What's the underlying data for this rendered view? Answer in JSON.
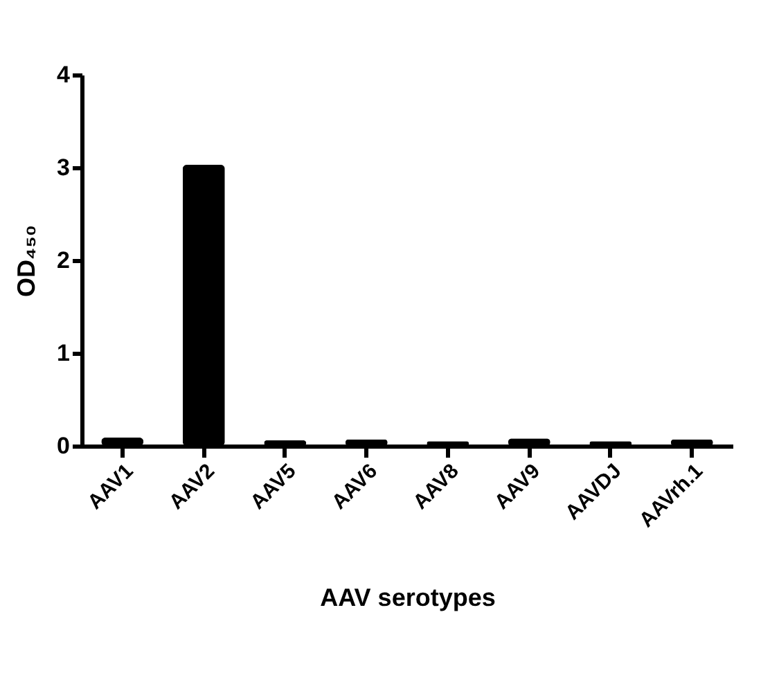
{
  "chart_data": {
    "type": "bar",
    "xlabel": "AAV serotypes",
    "ylabel": "OD₄₅₀",
    "categories": [
      "AAV1",
      "AAV2",
      "AAV5",
      "AAV6",
      "AAV8",
      "AAV9",
      "AAVDJ",
      "AAVrh.1"
    ],
    "values": [
      0.09,
      3.03,
      0.06,
      0.07,
      0.05,
      0.08,
      0.05,
      0.07
    ],
    "color": "#000000",
    "ylim": [
      0,
      4
    ],
    "yticks": [
      0,
      1,
      2,
      3,
      4
    ],
    "grid": false
  }
}
